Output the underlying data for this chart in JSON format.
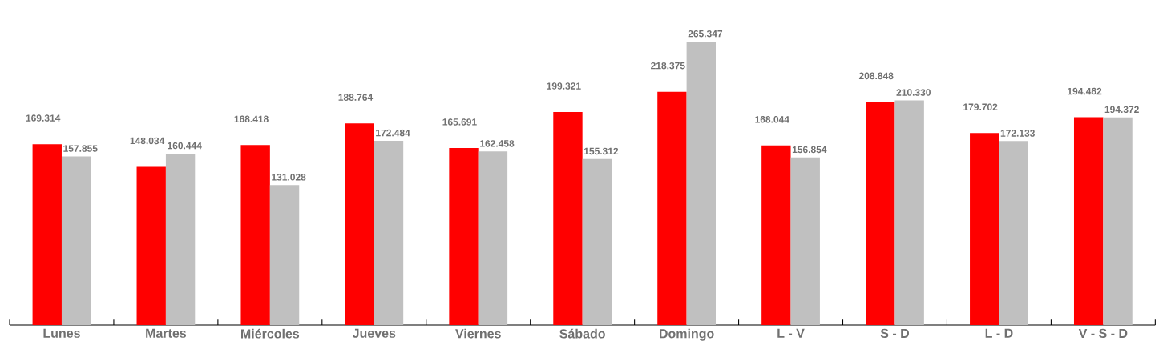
{
  "chart_data": {
    "type": "bar",
    "categories": [
      "Lunes",
      "Martes",
      "Miércoles",
      "Jueves",
      "Viernes",
      "Sábado",
      "Domingo",
      "L - V",
      "S - D",
      "L - D",
      "V - S - D"
    ],
    "series": [
      {
        "color": "#ff0000",
        "values": [
          169314,
          148034,
          168418,
          188764,
          165691,
          199321,
          218375,
          168044,
          208848,
          179702,
          194462
        ],
        "value_labels": [
          "169.314",
          "148.034",
          "168.418",
          "188.764",
          "165.691",
          "199.321",
          "218.375",
          "168.044",
          "208.848",
          "179.702",
          "194.462"
        ]
      },
      {
        "color": "#c0c0c0",
        "values": [
          157855,
          160444,
          131028,
          172484,
          162458,
          155312,
          265347,
          156854,
          210330,
          172133,
          194372
        ],
        "value_labels": [
          "157.855",
          "160.444",
          "131.028",
          "172.484",
          "162.458",
          "155.312",
          "265.347",
          "156.854",
          "210.330",
          "172.133",
          "194.372"
        ]
      }
    ]
  }
}
